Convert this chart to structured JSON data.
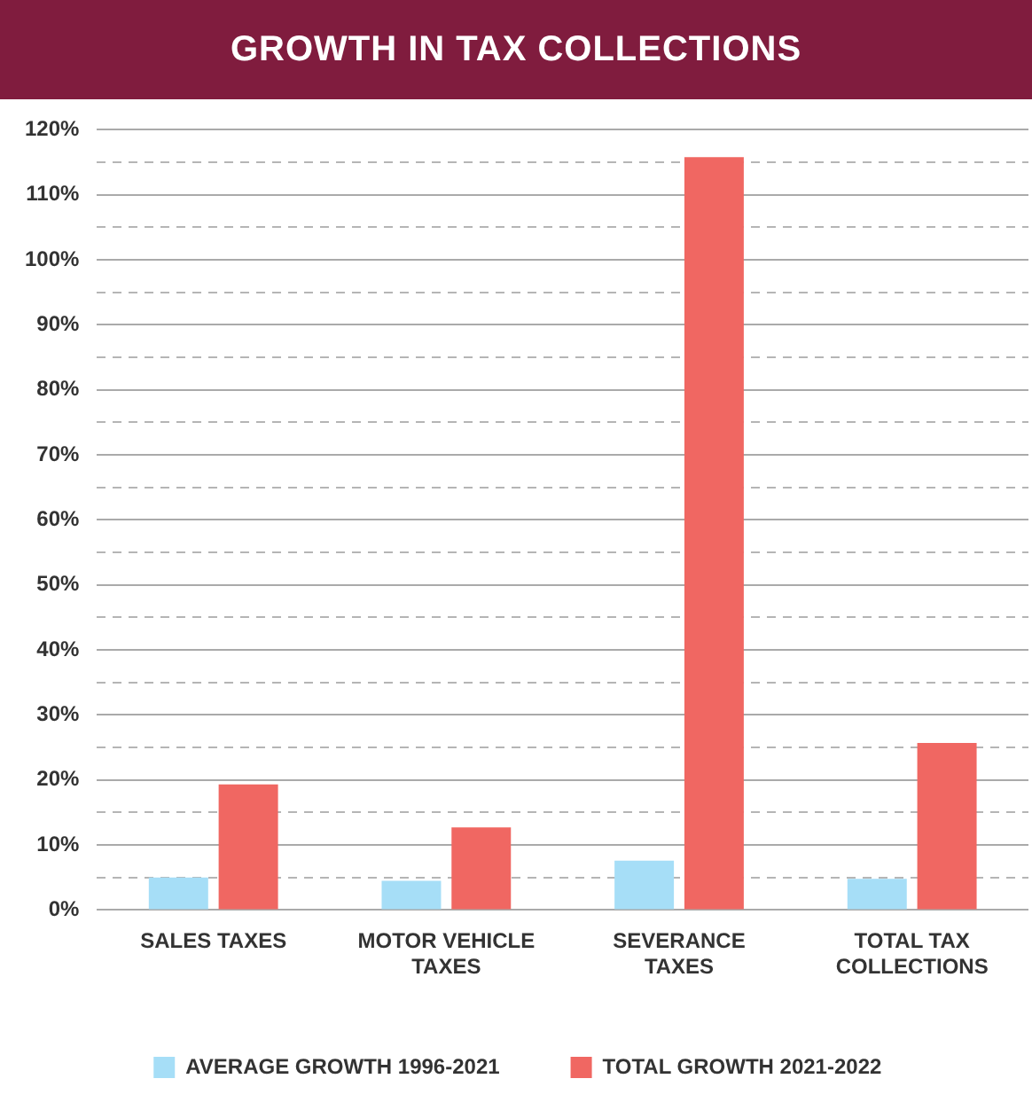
{
  "chart_data": {
    "type": "bar",
    "title": "GROWTH IN TAX COLLECTIONS",
    "categories": [
      "SALES TAXES",
      "MOTOR VEHICLE TAXES",
      "SEVERANCE TAXES",
      "TOTAL TAX COLLECTIONS"
    ],
    "series": [
      {
        "name": "AVERAGE GROWTH 1996-2021",
        "color": "#a6def7",
        "values": [
          5.0,
          4.5,
          7.6,
          4.8
        ]
      },
      {
        "name": "TOTAL GROWTH 2021-2022",
        "color": "#f06762",
        "values": [
          19.3,
          12.7,
          115.8,
          25.7
        ]
      }
    ],
    "ylim": [
      0,
      120
    ],
    "yticks": [
      {
        "value": 0,
        "label": "0%"
      },
      {
        "value": 5,
        "label": null
      },
      {
        "value": 10,
        "label": "10%"
      },
      {
        "value": 15,
        "label": null
      },
      {
        "value": 20,
        "label": "20%"
      },
      {
        "value": 25,
        "label": null
      },
      {
        "value": 30,
        "label": "30%"
      },
      {
        "value": 35,
        "label": null
      },
      {
        "value": 40,
        "label": "40%"
      },
      {
        "value": 45,
        "label": null
      },
      {
        "value": 50,
        "label": "50%"
      },
      {
        "value": 55,
        "label": null
      },
      {
        "value": 60,
        "label": "60%"
      },
      {
        "value": 65,
        "label": null
      },
      {
        "value": 70,
        "label": "70%"
      },
      {
        "value": 75,
        "label": null
      },
      {
        "value": 80,
        "label": "80%"
      },
      {
        "value": 85,
        "label": null
      },
      {
        "value": 90,
        "label": "90%"
      },
      {
        "value": 95,
        "label": null
      },
      {
        "value": 100,
        "label": "100%"
      },
      {
        "value": 105,
        "label": null
      },
      {
        "value": 110,
        "label": "110%"
      },
      {
        "value": 115,
        "label": null
      },
      {
        "value": 120,
        "label": "120%"
      }
    ],
    "grid": "y",
    "legend": "bottom"
  }
}
